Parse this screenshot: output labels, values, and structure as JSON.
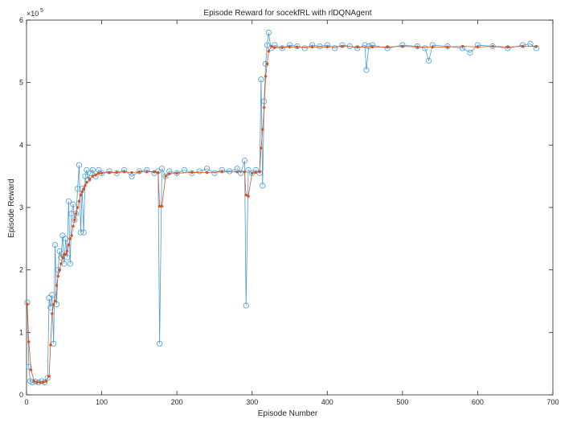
{
  "chart_data": {
    "type": "line",
    "title": "Episode Reward for socekfRL with rlDQNAgent",
    "xlabel": "Episode Number",
    "ylabel": "Episode Reward",
    "xlim": [
      0,
      700
    ],
    "ylim": [
      0,
      6
    ],
    "y_multiplier_label": "×10",
    "y_multiplier_exponent": "5",
    "x_ticks": [
      "0",
      "100",
      "200",
      "300",
      "400",
      "500",
      "600",
      "700"
    ],
    "y_ticks": [
      "0",
      "1",
      "2",
      "3",
      "4",
      "5",
      "6"
    ],
    "grid": false,
    "legend": "none",
    "series": [
      {
        "marker": "circle",
        "color": "#4a9bd6",
        "x": [
          1,
          3,
          5,
          8,
          12,
          16,
          20,
          24,
          28,
          30,
          32,
          34,
          36,
          38,
          40,
          42,
          44,
          46,
          48,
          50,
          52,
          54,
          56,
          58,
          60,
          62,
          64,
          66,
          68,
          70,
          72,
          74,
          76,
          78,
          80,
          82,
          85,
          88,
          92,
          96,
          100,
          110,
          120,
          130,
          140,
          150,
          160,
          170,
          175,
          177,
          180,
          185,
          190,
          200,
          210,
          220,
          230,
          240,
          250,
          260,
          270,
          280,
          285,
          290,
          292,
          295,
          300,
          305,
          310,
          312,
          314,
          316,
          318,
          320,
          322,
          325,
          330,
          340,
          350,
          360,
          370,
          380,
          390,
          400,
          410,
          420,
          430,
          440,
          450,
          452,
          455,
          460,
          480,
          500,
          520,
          530,
          535,
          540,
          560,
          580,
          590,
          600,
          620,
          640,
          660,
          670,
          678
        ],
        "y": [
          1.48,
          0.45,
          0.22,
          0.2,
          0.21,
          0.2,
          0.22,
          0.2,
          0.27,
          1.55,
          1.4,
          1.6,
          0.82,
          2.4,
          1.45,
          2.0,
          2.3,
          2.2,
          2.55,
          2.1,
          2.5,
          2.2,
          3.1,
          2.1,
          2.9,
          3.05,
          2.8,
          2.9,
          3.3,
          3.68,
          2.6,
          3.3,
          2.6,
          3.5,
          3.6,
          3.45,
          3.55,
          3.6,
          3.5,
          3.6,
          3.55,
          3.58,
          3.55,
          3.6,
          3.5,
          3.58,
          3.6,
          3.55,
          3.58,
          0.82,
          3.62,
          3.5,
          3.58,
          3.55,
          3.6,
          3.55,
          3.58,
          3.62,
          3.55,
          3.6,
          3.58,
          3.62,
          3.55,
          3.75,
          1.43,
          3.6,
          3.55,
          3.6,
          3.55,
          5.05,
          3.35,
          4.7,
          5.3,
          5.6,
          5.8,
          5.55,
          5.6,
          5.55,
          5.6,
          5.58,
          5.55,
          5.6,
          5.58,
          5.6,
          5.55,
          5.6,
          5.58,
          5.55,
          5.6,
          5.2,
          5.58,
          5.6,
          5.55,
          5.6,
          5.58,
          5.55,
          5.35,
          5.6,
          5.58,
          5.55,
          5.48,
          5.6,
          5.58,
          5.55,
          5.6,
          5.62,
          5.55
        ]
      },
      {
        "marker": "asterisk",
        "color": "#d95319",
        "x": [
          1,
          3,
          6,
          10,
          14,
          18,
          22,
          26,
          30,
          32,
          34,
          36,
          38,
          40,
          42,
          44,
          46,
          48,
          50,
          52,
          54,
          56,
          58,
          60,
          62,
          64,
          66,
          68,
          70,
          72,
          74,
          76,
          78,
          80,
          84,
          88,
          92,
          96,
          100,
          110,
          120,
          130,
          140,
          150,
          160,
          170,
          175,
          177,
          180,
          185,
          190,
          200,
          220,
          240,
          260,
          280,
          290,
          292,
          295,
          300,
          305,
          310,
          312,
          314,
          316,
          318,
          320,
          322,
          326,
          330,
          340,
          350,
          360,
          380,
          400,
          420,
          440,
          460,
          480,
          500,
          520,
          540,
          560,
          580,
          600,
          620,
          640,
          660,
          678
        ],
        "y": [
          1.45,
          0.85,
          0.4,
          0.22,
          0.2,
          0.2,
          0.2,
          0.22,
          0.3,
          0.8,
          1.3,
          1.45,
          1.5,
          1.75,
          1.9,
          2.0,
          2.1,
          2.2,
          2.25,
          2.25,
          2.3,
          2.4,
          2.5,
          2.55,
          2.7,
          2.8,
          2.9,
          3.0,
          3.1,
          3.2,
          3.25,
          3.3,
          3.35,
          3.4,
          3.45,
          3.5,
          3.52,
          3.55,
          3.55,
          3.56,
          3.56,
          3.57,
          3.56,
          3.57,
          3.57,
          3.57,
          3.56,
          3.02,
          3.02,
          3.5,
          3.54,
          3.55,
          3.56,
          3.56,
          3.57,
          3.57,
          3.57,
          3.2,
          3.18,
          3.55,
          3.56,
          3.57,
          3.95,
          4.25,
          4.6,
          5.1,
          5.3,
          5.5,
          5.58,
          5.56,
          5.56,
          5.57,
          5.57,
          5.57,
          5.57,
          5.58,
          5.57,
          5.57,
          5.57,
          5.58,
          5.57,
          5.57,
          5.57,
          5.58,
          5.57,
          5.58,
          5.57,
          5.58,
          5.58
        ]
      }
    ]
  }
}
